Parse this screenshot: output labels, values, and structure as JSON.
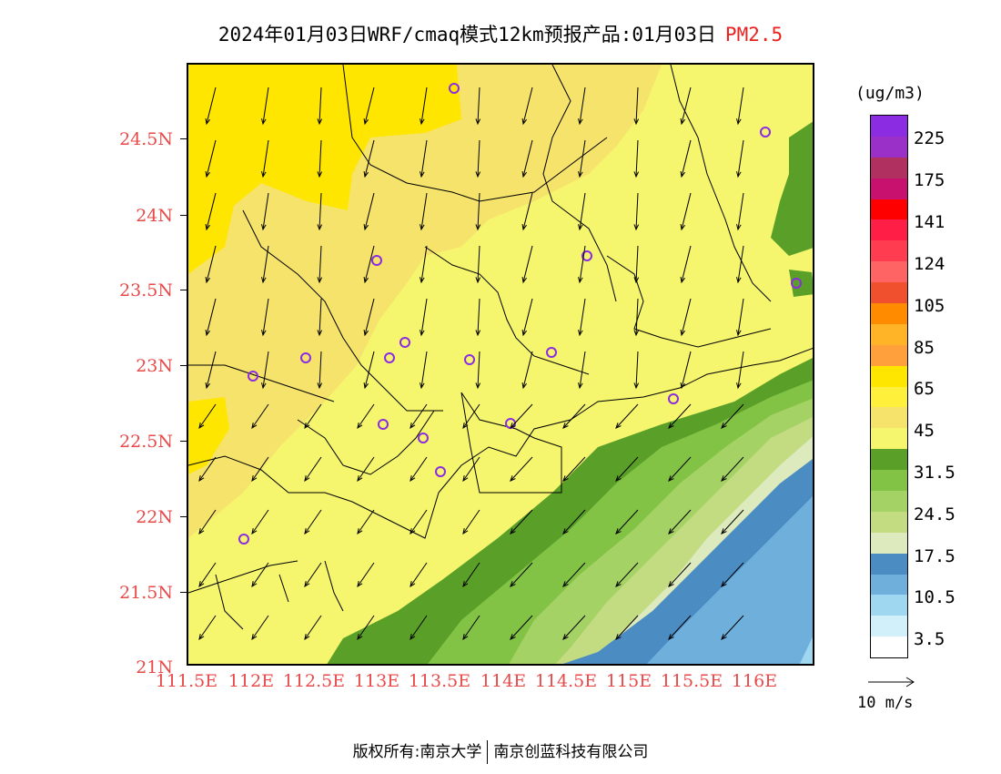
{
  "title": {
    "main": "2024年01月03日WRF/cmaq模式12km预报产品:01月03日",
    "pollutant": "PM2.5",
    "pollutant_color": "#e8231f"
  },
  "axes": {
    "y_labels": [
      "24.5N",
      "24N",
      "23.5N",
      "23N",
      "22.5N",
      "22N",
      "21.5N",
      "21N"
    ],
    "x_labels": [
      "111.5E",
      "112E",
      "112.5E",
      "113E",
      "113.5E",
      "114E",
      "114.5E",
      "115E",
      "115.5E",
      "116E"
    ],
    "label_color": "#e84a4a"
  },
  "legend": {
    "unit": "(ug/m3)",
    "labels": [
      "225",
      "175",
      "141",
      "124",
      "105",
      "85",
      "65",
      "45",
      "31.5",
      "24.5",
      "17.5",
      "10.5",
      "3.5"
    ],
    "colors": [
      "#8b2be2",
      "#9b30c8",
      "#b03060",
      "#c8106e",
      "#ff0000",
      "#ff1e46",
      "#ff3c50",
      "#ff6464",
      "#f0502d",
      "#ff8c00",
      "#ffb428",
      "#ffa03c",
      "#ffe600",
      "#fff03c",
      "#f5e36b",
      "#f5f56e",
      "#5aa028",
      "#82c346",
      "#a5d264",
      "#c3dc82",
      "#dceabe",
      "#4b8cc3",
      "#6eafdc",
      "#a0d7f0",
      "#d2f0fa",
      "#ffffff"
    ],
    "vector_label": "10 m/s"
  },
  "footer": {
    "copyright": "版权所有:南京大学",
    "company": "南京创蓝科技有限公司"
  }
}
